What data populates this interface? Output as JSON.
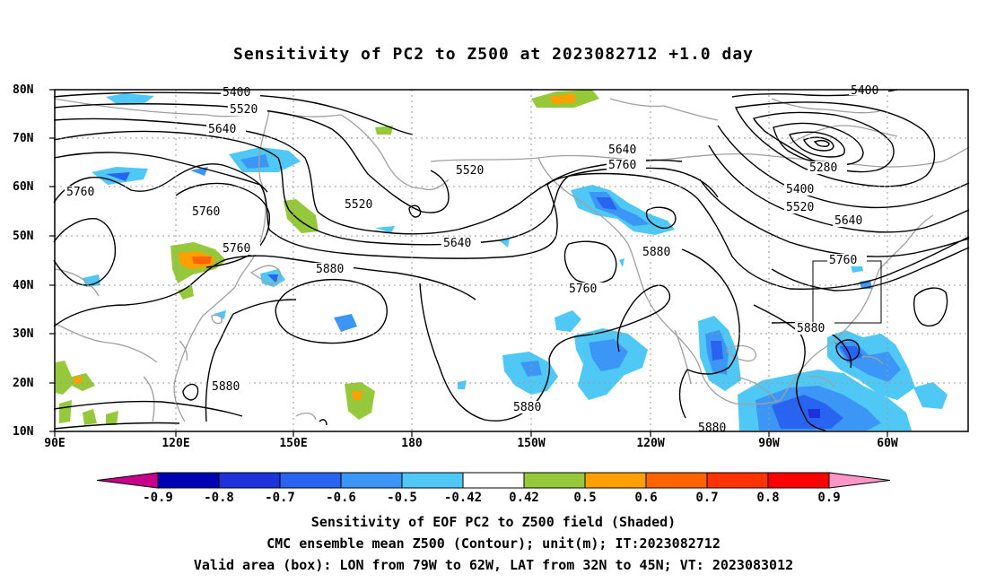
{
  "title": "Sensitivity of PC2 to Z500 at 2023082712 +1.0 day",
  "lat_labels": [
    "80N",
    "70N",
    "60N",
    "50N",
    "40N",
    "30N",
    "20N",
    "10N"
  ],
  "lon_labels": [
    "90E",
    "120E",
    "150E",
    "180",
    "150W",
    "120W",
    "90W",
    "60W"
  ],
  "contour_labels": [
    "5400",
    "5520",
    "5640",
    "5760",
    "5760",
    "5760",
    "5880",
    "5880",
    "5520",
    "5520",
    "5640",
    "5760",
    "5640",
    "5760",
    "5880",
    "5880",
    "5280",
    "5400",
    "5520",
    "5640",
    "5760",
    "5880",
    "5400",
    "5880"
  ],
  "colorbar": {
    "labels": [
      "-0.9",
      "-0.8",
      "-0.7",
      "-0.6",
      "-0.5",
      "-0.42",
      "0.42",
      "0.5",
      "0.6",
      "0.7",
      "0.8",
      "0.9"
    ],
    "colors": [
      "#c8008c",
      "#0000b4",
      "#1e32dc",
      "#2864f0",
      "#3c96f5",
      "#50c8f5",
      "#ffffff",
      "#96c83c",
      "#ffa000",
      "#ff6400",
      "#ff3200",
      "#ff0000",
      "#ff96c8"
    ]
  },
  "captions": {
    "line1": "Sensitivity of EOF PC2 to Z500 field (Shaded)",
    "line2": "CMC ensemble mean Z500 (Contour); unit(m); IT:2023082712",
    "line3": "Valid area (box): LON from 79W to 62W, LAT from 32N to 45N; VT: 2023083012"
  }
}
